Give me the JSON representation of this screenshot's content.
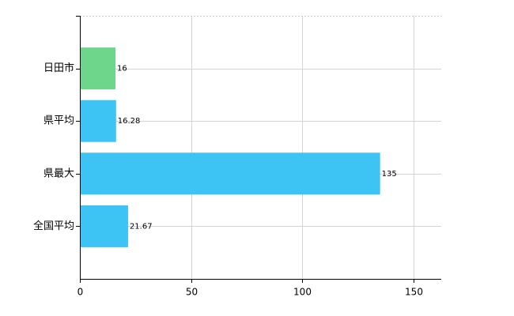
{
  "chart_data": {
    "type": "hbar",
    "categories": [
      "日田市",
      "県平均",
      "県最大",
      "全国平均"
    ],
    "values": [
      16,
      16.28,
      135,
      21.67
    ],
    "colors": [
      "#6dd68a",
      "#3ec3f5",
      "#3ec3f5",
      "#3ec3f5"
    ],
    "xlim": [
      0,
      162.5
    ],
    "xticks": [
      0,
      50,
      100,
      150
    ],
    "grid": true
  }
}
